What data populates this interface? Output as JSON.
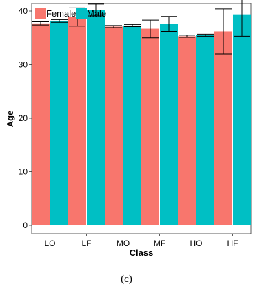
{
  "figure": {
    "caption": "(c)"
  },
  "chart_data": {
    "type": "bar",
    "title": "",
    "xlabel": "Class",
    "ylabel": "Age",
    "categories": [
      "LO",
      "LF",
      "MO",
      "MF",
      "HO",
      "HF"
    ],
    "ylim": [
      0,
      45
    ],
    "yticks": [
      0,
      10,
      20,
      30,
      40
    ],
    "grid": false,
    "legend_position": "top-left",
    "series": [
      {
        "name": "Female",
        "color": "#F8766D",
        "values": [
          37.7,
          38.9,
          37.1,
          36.7,
          35.3,
          36.2
        ],
        "error_low": [
          37.4,
          37.2,
          36.9,
          35.0,
          35.1,
          32.0
        ],
        "error_high": [
          38.0,
          40.6,
          37.3,
          38.3,
          35.5,
          40.4
        ]
      },
      {
        "name": "Male",
        "color": "#00BFC4",
        "values": [
          38.2,
          40.2,
          37.3,
          37.6,
          35.5,
          39.4
        ],
        "error_low": [
          37.9,
          39.1,
          37.1,
          36.2,
          35.3,
          35.3
        ],
        "error_high": [
          38.4,
          41.3,
          37.5,
          39.0,
          35.7,
          43.5
        ]
      }
    ]
  }
}
